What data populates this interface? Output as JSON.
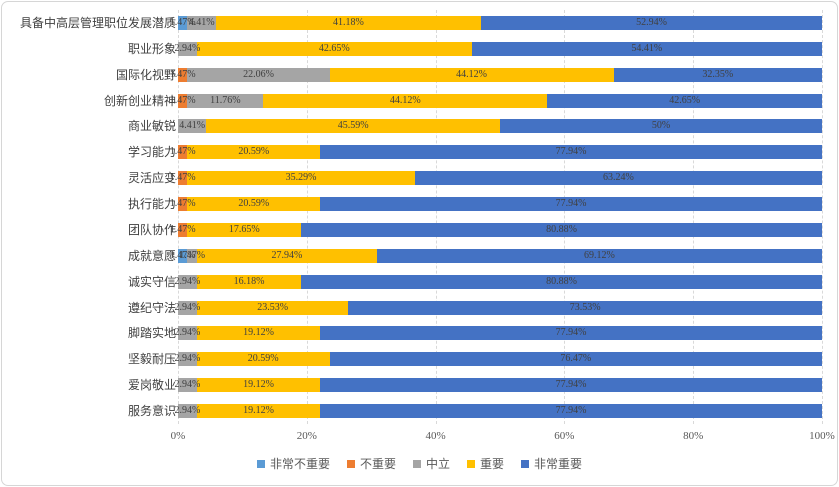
{
  "chart_data": {
    "type": "bar",
    "orientation": "horizontal",
    "stacked_percent": true,
    "title": "",
    "xlabel": "",
    "ylabel": "",
    "xlim": [
      0,
      100
    ],
    "x_ticks": [
      {
        "label": "0%",
        "value": 0
      },
      {
        "label": "20%",
        "value": 20
      },
      {
        "label": "40%",
        "value": 40
      },
      {
        "label": "60%",
        "value": 60
      },
      {
        "label": "80%",
        "value": 80
      },
      {
        "label": "100%",
        "value": 100
      }
    ],
    "gridlines": "vertical-dashed",
    "categories": [
      "具备中高层管理职位发展潜质",
      "职业形象",
      "国际化视野",
      "创新创业精神",
      "商业敏锐",
      "学习能力",
      "灵活应变",
      "执行能力",
      "团队协作",
      "成就意愿",
      "诚实守信",
      "遵纪守法",
      "脚踏实地",
      "坚毅耐压",
      "爱岗敬业",
      "服务意识"
    ],
    "series": [
      {
        "name": "非常不重要",
        "color": "#5B9BD5",
        "values": [
          1.47,
          0,
          0,
          0,
          0,
          0,
          0,
          0,
          0,
          1.47,
          0,
          0,
          0,
          0,
          0,
          0
        ]
      },
      {
        "name": "不重要",
        "color": "#ED7D31",
        "values": [
          0,
          0,
          1.47,
          1.47,
          0,
          1.47,
          1.47,
          1.47,
          1.47,
          0,
          0,
          0,
          0,
          0,
          0,
          0
        ]
      },
      {
        "name": "中立",
        "color": "#A5A5A5",
        "values": [
          4.41,
          2.94,
          22.06,
          11.76,
          4.41,
          0,
          0,
          0,
          0,
          1.47,
          2.94,
          2.94,
          2.94,
          2.94,
          2.94,
          2.94
        ]
      },
      {
        "name": "重要",
        "color": "#FFC000",
        "values": [
          41.18,
          42.65,
          44.12,
          44.12,
          45.59,
          20.59,
          35.29,
          20.59,
          17.65,
          27.94,
          16.18,
          23.53,
          19.12,
          20.59,
          19.12,
          19.12
        ]
      },
      {
        "name": "非常重要",
        "color": "#4472C4",
        "values": [
          52.94,
          54.41,
          32.35,
          42.65,
          50,
          77.94,
          63.24,
          77.94,
          80.88,
          69.12,
          80.88,
          73.53,
          77.94,
          76.47,
          77.94,
          77.94
        ]
      }
    ],
    "data_labels": {
      "shown": true,
      "color": "#404040",
      "format": "percent-2dp-trim"
    },
    "legend": {
      "position": "bottom",
      "items": [
        "非常不重要",
        "不重要",
        "中立",
        "重要",
        "非常重要"
      ]
    }
  },
  "styles": {
    "gridline_color": "#d9d9d9",
    "axis_tick_color": "#595959",
    "legend_text_color": "#595959",
    "frame_border_color": "#d6d6d6",
    "background": "#ffffff"
  }
}
